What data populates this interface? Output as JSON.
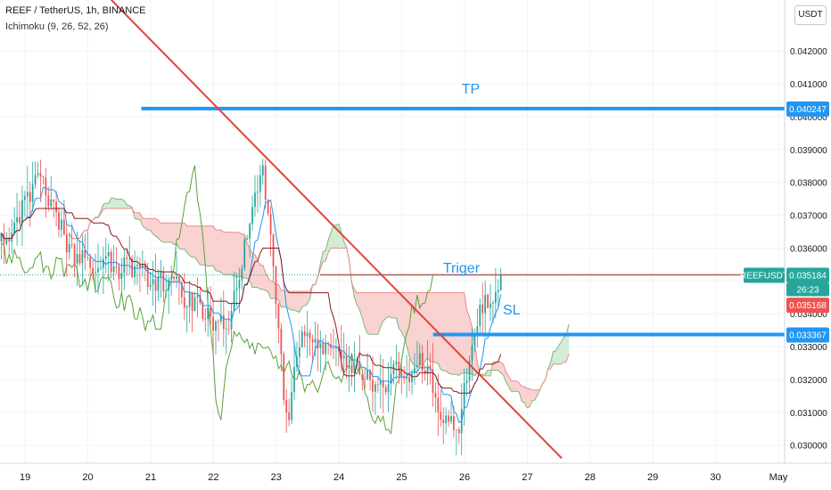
{
  "header": {
    "title": "REEF / TetherUS, 1h, BINANCE",
    "indicator": "Ichimoku (9, 26, 52, 26)",
    "currency_button": "USDT"
  },
  "price_tags": {
    "tp_label": "0.040247",
    "symbol_label": "REEFUSDT",
    "last_price": "0.035184",
    "countdown": "26:23",
    "red_label": "0.035168",
    "sl_label": "0.033367"
  },
  "colors": {
    "bull": "#26a69a",
    "bear": "#ef5350",
    "trend": "#e0443a",
    "tp_sl_line": "#2196f3",
    "resistance": "#d9473f",
    "cloud_red": "#f7c6c4",
    "cloud_green": "#c8e6c9",
    "lagging": "#5aa336",
    "tenkan": "#2196f3",
    "kijun": "#8b1a1a"
  },
  "chart_data": {
    "type": "candlestick",
    "title": "REEF / TetherUS, 1h, BINANCE",
    "indicator": "Ichimoku (9, 26, 52, 26)",
    "x_ticks": [
      {
        "label": "19",
        "day": 19
      },
      {
        "label": "20",
        "day": 20
      },
      {
        "label": "21",
        "day": 21
      },
      {
        "label": "22",
        "day": 22
      },
      {
        "label": "23",
        "day": 23
      },
      {
        "label": "24",
        "day": 24
      },
      {
        "label": "25",
        "day": 25
      },
      {
        "label": "26",
        "day": 26
      },
      {
        "label": "27",
        "day": 27
      },
      {
        "label": "28",
        "day": 28
      },
      {
        "label": "29",
        "day": 29
      },
      {
        "label": "30",
        "day": 30
      },
      {
        "label": "May",
        "day": 31
      }
    ],
    "xlim": [
      18.6,
      31.1
    ],
    "ylim": [
      0.02945,
      0.04355
    ],
    "y_ticks": [
      "0.042000",
      "0.041000",
      "0.040000",
      "0.039000",
      "0.038000",
      "0.037000",
      "0.036000",
      "0.035000",
      "0.034000",
      "0.033000",
      "0.032000",
      "0.031000",
      "0.030000"
    ],
    "price_range": {
      "start_day": 18.6,
      "end_day": 26.6,
      "start": 0.0362,
      "end": 0.03518,
      "low": 0.0297,
      "high": 0.0395
    },
    "annotations": [
      {
        "text": "TP",
        "color": "#2196f3",
        "day": 26.1,
        "price": 0.0407
      },
      {
        "text": "Triger",
        "color": "#2196f3",
        "day": 25.95,
        "price": 0.03525
      },
      {
        "text": "SL",
        "color": "#2196f3",
        "day": 26.75,
        "price": 0.03398
      }
    ],
    "horizontal_lines": [
      {
        "name": "TP",
        "price": 0.040247,
        "from_day": 20.85,
        "to_day": 31.1,
        "color": "#2196f3"
      },
      {
        "name": "SL",
        "price": 0.033367,
        "from_day": 25.5,
        "to_day": 31.1,
        "color": "#2196f3"
      },
      {
        "name": "resistance",
        "price": 0.035184,
        "from_day": 23.7,
        "to_day": 31.1,
        "color": "#d9473f"
      }
    ],
    "trendline": {
      "from": {
        "day": 20.35,
        "price": 0.0436
      },
      "to": {
        "day": 27.55,
        "price": 0.0296
      }
    }
  }
}
